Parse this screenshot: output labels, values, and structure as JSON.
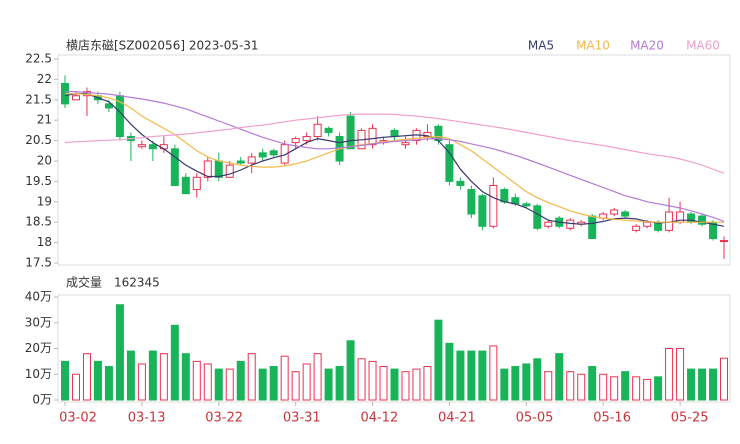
{
  "chart_data": [
    {
      "type": "candlestick",
      "title": "横店东磁[SZ002056] 2023-05-31",
      "ylim": [
        17.5,
        22.5
      ],
      "yticks": [
        {
          "value": 22.5,
          "label": "22.5"
        },
        22,
        21.5,
        21,
        20.5,
        20,
        19.5,
        19,
        18.5,
        18,
        17.5
      ],
      "up_color": "#e8334f",
      "down_color": "#19b45a",
      "open": [
        21.9,
        21.5,
        21.6,
        21.6,
        21.4,
        21.6,
        20.6,
        20.35,
        20.4,
        20.3,
        20.3,
        19.6,
        19.3,
        19.6,
        20.0,
        19.6,
        20.0,
        19.95,
        20.2,
        20.25,
        19.95,
        20.45,
        20.5,
        20.6,
        20.8,
        20.6,
        21.1,
        20.3,
        20.4,
        20.45,
        20.75,
        20.4,
        20.5,
        20.6,
        20.85,
        20.4,
        19.5,
        19.3,
        19.15,
        18.4,
        19.3,
        19.1,
        18.95,
        18.9,
        18.4,
        18.6,
        18.35,
        18.45,
        18.65,
        18.6,
        18.7,
        18.75,
        18.3,
        18.4,
        18.5,
        18.3,
        18.5,
        18.7,
        18.65,
        18.5,
        18.05
      ],
      "high": [
        22.1,
        21.7,
        21.8,
        21.7,
        21.5,
        21.7,
        20.7,
        20.5,
        20.5,
        20.6,
        20.4,
        19.7,
        19.7,
        20.1,
        20.2,
        20.0,
        20.1,
        20.2,
        20.3,
        20.3,
        20.5,
        20.6,
        20.7,
        21.1,
        20.85,
        20.7,
        21.2,
        20.8,
        20.9,
        20.6,
        20.8,
        20.6,
        20.8,
        20.9,
        20.9,
        20.5,
        19.6,
        19.4,
        19.2,
        19.6,
        19.35,
        19.2,
        19.0,
        18.95,
        18.55,
        18.65,
        18.6,
        18.55,
        18.7,
        18.75,
        18.85,
        18.8,
        18.45,
        18.55,
        18.55,
        19.1,
        19.0,
        18.75,
        18.7,
        18.55,
        18.15
      ],
      "low": [
        21.3,
        21.5,
        21.1,
        21.4,
        21.2,
        20.5,
        20.0,
        20.3,
        20.0,
        20.2,
        19.4,
        19.2,
        19.1,
        19.5,
        19.5,
        19.6,
        19.9,
        19.7,
        20.0,
        20.1,
        19.9,
        20.3,
        20.4,
        20.5,
        20.6,
        19.9,
        20.3,
        20.3,
        20.3,
        20.4,
        20.5,
        20.3,
        20.4,
        20.5,
        20.4,
        19.4,
        19.3,
        18.6,
        18.3,
        18.35,
        18.95,
        18.9,
        18.85,
        18.3,
        18.35,
        18.35,
        18.3,
        18.4,
        18.1,
        18.55,
        18.65,
        18.6,
        18.25,
        18.35,
        18.25,
        18.25,
        18.45,
        18.45,
        18.4,
        18.05,
        17.6
      ],
      "close": [
        21.4,
        21.6,
        21.7,
        21.5,
        21.3,
        20.6,
        20.5,
        20.4,
        20.3,
        20.4,
        19.4,
        19.2,
        19.6,
        20.0,
        19.6,
        19.9,
        19.95,
        20.1,
        20.1,
        20.15,
        20.4,
        20.55,
        20.6,
        20.9,
        20.7,
        20.0,
        20.3,
        20.75,
        20.8,
        20.5,
        20.6,
        20.45,
        20.75,
        20.7,
        20.5,
        19.5,
        19.4,
        18.7,
        18.4,
        19.4,
        19.0,
        18.95,
        18.9,
        18.35,
        18.5,
        18.4,
        18.55,
        18.5,
        18.1,
        18.7,
        18.8,
        18.65,
        18.4,
        18.5,
        18.3,
        18.75,
        18.75,
        18.5,
        18.45,
        18.1,
        18.05
      ],
      "series": [
        {
          "name": "MA5",
          "color": "#3a3a6e",
          "values": [
            21.6,
            21.65,
            21.65,
            21.55,
            21.45,
            21.2,
            20.9,
            20.65,
            20.45,
            20.3,
            20.1,
            19.9,
            19.75,
            19.62,
            19.62,
            19.68,
            19.78,
            19.9,
            20.0,
            20.08,
            20.15,
            20.3,
            20.45,
            20.55,
            20.5,
            20.45,
            20.5,
            20.52,
            20.55,
            20.58,
            20.6,
            20.62,
            20.64,
            20.62,
            20.5,
            20.2,
            19.8,
            19.5,
            19.25,
            19.1,
            19.0,
            18.95,
            18.85,
            18.7,
            18.55,
            18.5,
            18.47,
            18.45,
            18.47,
            18.52,
            18.58,
            18.6,
            18.58,
            18.52,
            18.48,
            18.5,
            18.55,
            18.55,
            18.5,
            18.45,
            18.4
          ]
        },
        {
          "name": "MA10",
          "color": "#f2b94b",
          "values": [
            21.65,
            21.65,
            21.63,
            21.6,
            21.55,
            21.45,
            21.3,
            21.1,
            20.95,
            20.8,
            20.65,
            20.45,
            20.25,
            20.1,
            20.0,
            19.95,
            19.9,
            19.87,
            19.85,
            19.85,
            19.88,
            19.93,
            20.0,
            20.1,
            20.2,
            20.3,
            20.35,
            20.4,
            20.43,
            20.47,
            20.5,
            20.53,
            20.56,
            20.58,
            20.6,
            20.55,
            20.4,
            20.25,
            20.05,
            19.85,
            19.65,
            19.45,
            19.25,
            19.1,
            18.98,
            18.88,
            18.78,
            18.7,
            18.64,
            18.6,
            18.57,
            18.55,
            18.53,
            18.51,
            18.5,
            18.5,
            18.5,
            18.5,
            18.5,
            18.5,
            18.5
          ]
        },
        {
          "name": "MA20",
          "color": "#b57ad6",
          "values": [
            21.7,
            21.7,
            21.68,
            21.66,
            21.64,
            21.6,
            21.56,
            21.52,
            21.47,
            21.42,
            21.35,
            21.28,
            21.18,
            21.08,
            20.98,
            20.88,
            20.78,
            20.68,
            20.58,
            20.5,
            20.42,
            20.37,
            20.33,
            20.3,
            20.3,
            20.32,
            20.35,
            20.38,
            20.42,
            20.45,
            20.48,
            20.5,
            20.52,
            20.54,
            20.55,
            20.52,
            20.48,
            20.42,
            20.36,
            20.3,
            20.22,
            20.14,
            20.05,
            19.95,
            19.85,
            19.75,
            19.65,
            19.55,
            19.45,
            19.35,
            19.25,
            19.15,
            19.08,
            19.0,
            18.95,
            18.9,
            18.85,
            18.78,
            18.7,
            18.62,
            18.52
          ]
        },
        {
          "name": "MA60",
          "color": "#f0a0cc",
          "values": [
            20.45,
            20.47,
            20.48,
            20.5,
            20.51,
            20.52,
            20.55,
            20.57,
            20.6,
            20.62,
            20.64,
            20.66,
            20.69,
            20.72,
            20.75,
            20.78,
            20.82,
            20.85,
            20.88,
            20.92,
            20.96,
            21.0,
            21.03,
            21.06,
            21.09,
            21.12,
            21.14,
            21.15,
            21.15,
            21.15,
            21.14,
            21.12,
            21.1,
            21.07,
            21.04,
            21.0,
            20.96,
            20.92,
            20.88,
            20.84,
            20.8,
            20.75,
            20.7,
            20.65,
            20.6,
            20.55,
            20.5,
            20.46,
            20.42,
            20.38,
            20.33,
            20.28,
            20.23,
            20.18,
            20.14,
            20.1,
            20.05,
            19.98,
            19.9,
            19.8,
            19.7
          ]
        }
      ]
    },
    {
      "type": "bar",
      "title": "成交量",
      "latest": 162345,
      "ylim": [
        0,
        40
      ],
      "yticks": [
        {
          "value": 40,
          "label": "40万"
        },
        {
          "value": 30,
          "label": "30万"
        },
        {
          "value": 20,
          "label": "20万"
        },
        {
          "value": 10,
          "label": "10万"
        },
        {
          "value": 0,
          "label": "0万"
        }
      ],
      "categories": [
        "03-02",
        null,
        null,
        null,
        null,
        null,
        null,
        "03-13",
        null,
        null,
        null,
        null,
        null,
        null,
        "03-22",
        null,
        null,
        null,
        null,
        null,
        null,
        "03-31",
        null,
        null,
        null,
        null,
        null,
        null,
        "04-12",
        null,
        null,
        null,
        null,
        null,
        null,
        "04-21",
        null,
        null,
        null,
        null,
        null,
        null,
        "05-05",
        null,
        null,
        null,
        null,
        null,
        null,
        "05-16",
        null,
        null,
        null,
        null,
        null,
        null,
        "05-25",
        null,
        null,
        null,
        null
      ],
      "values": [
        15,
        10,
        18,
        15,
        13,
        37,
        19,
        14,
        19,
        18,
        29,
        18,
        15,
        14,
        12,
        12,
        15,
        18,
        12,
        13,
        17,
        11,
        14,
        18,
        12,
        13,
        23,
        16,
        15,
        13,
        12,
        11,
        12,
        13,
        31,
        22,
        19,
        19,
        19,
        21,
        12,
        13,
        14,
        16,
        11,
        18,
        11,
        10,
        13,
        10,
        9,
        11,
        9,
        8,
        9,
        20,
        20,
        12,
        12,
        12,
        16.2345
      ]
    }
  ]
}
